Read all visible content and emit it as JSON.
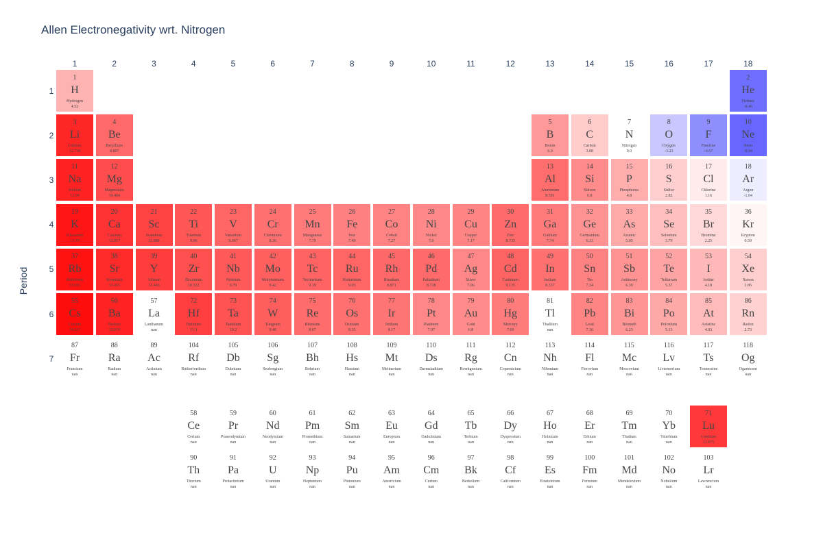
{
  "chart_data": {
    "type": "heatmap",
    "title": "Allen Electronegativity wrt. Nitrogen",
    "ylabel": "Period",
    "xlabel": "",
    "group_ticks": [
      "1",
      "2",
      "3",
      "4",
      "5",
      "6",
      "7",
      "8",
      "9",
      "10",
      "11",
      "12",
      "13",
      "14",
      "15",
      "16",
      "17",
      "18"
    ],
    "period_ticks": [
      "1",
      "2",
      "3",
      "4",
      "5",
      "6",
      "7"
    ],
    "colorscale": {
      "negative": "#0000ff",
      "zero": "#ffffff",
      "positive": "#ff0000",
      "range": [
        -15,
        15
      ]
    },
    "elements": [
      {
        "z": 1,
        "sym": "H",
        "name": "Hydrogen",
        "val": "4.52",
        "group": 1,
        "period": 1
      },
      {
        "z": 2,
        "sym": "He",
        "name": "Helium",
        "val": "-8.46",
        "group": 18,
        "period": 1
      },
      {
        "z": 3,
        "sym": "Li",
        "name": "Lithium",
        "val": "12.738",
        "group": 1,
        "period": 2
      },
      {
        "z": 4,
        "sym": "Be",
        "name": "Beryllium",
        "val": "8.807",
        "group": 2,
        "period": 2
      },
      {
        "z": 5,
        "sym": "B",
        "name": "Boron",
        "val": "6.0",
        "group": 13,
        "period": 2
      },
      {
        "z": 6,
        "sym": "C",
        "name": "Carbon",
        "val": "3.08",
        "group": 14,
        "period": 2
      },
      {
        "z": 7,
        "sym": "N",
        "name": "Nitrogen",
        "val": "0.0",
        "group": 15,
        "period": 2
      },
      {
        "z": 8,
        "sym": "O",
        "name": "Oxygen",
        "val": "-3.23",
        "group": 16,
        "period": 2
      },
      {
        "z": 9,
        "sym": "F",
        "name": "Fluorine",
        "val": "-6.67",
        "group": 17,
        "period": 2
      },
      {
        "z": 10,
        "sym": "Ne",
        "name": "Neon",
        "val": "-8.94",
        "group": 18,
        "period": 2
      },
      {
        "z": 11,
        "sym": "Na",
        "name": "Sodium",
        "val": "12.99",
        "group": 1,
        "period": 3
      },
      {
        "z": 12,
        "sym": "Mg",
        "name": "Magnesium",
        "val": "10.484",
        "group": 2,
        "period": 3
      },
      {
        "z": 13,
        "sym": "Al",
        "name": "Aluminum",
        "val": "8.591",
        "group": 13,
        "period": 3
      },
      {
        "z": 14,
        "sym": "Si",
        "name": "Silicon",
        "val": "6.8",
        "group": 14,
        "period": 3
      },
      {
        "z": 15,
        "sym": "P",
        "name": "Phosphorus",
        "val": "4.8",
        "group": 15,
        "period": 3
      },
      {
        "z": 16,
        "sym": "S",
        "name": "Sulfur",
        "val": "2.82",
        "group": 16,
        "period": 3
      },
      {
        "z": 17,
        "sym": "Cl",
        "name": "Chlorine",
        "val": "1.16",
        "group": 17,
        "period": 3
      },
      {
        "z": 18,
        "sym": "Ar",
        "name": "Argon",
        "val": "-1.04",
        "group": 18,
        "period": 3
      },
      {
        "z": 19,
        "sym": "K",
        "name": "Potassium",
        "val": "13.79",
        "group": 1,
        "period": 4
      },
      {
        "z": 20,
        "sym": "Ca",
        "name": "Calcium",
        "val": "12.017",
        "group": 2,
        "period": 4
      },
      {
        "z": 21,
        "sym": "Sc",
        "name": "Scandium",
        "val": "11.088",
        "group": 3,
        "period": 4
      },
      {
        "z": 22,
        "sym": "Ti",
        "name": "Titanium",
        "val": "9.96",
        "group": 4,
        "period": 4
      },
      {
        "z": 23,
        "sym": "V",
        "name": "Vanadium",
        "val": "9.067",
        "group": 5,
        "period": 4
      },
      {
        "z": 24,
        "sym": "Cr",
        "name": "Chromium",
        "val": "8.36",
        "group": 6,
        "period": 4
      },
      {
        "z": 25,
        "sym": "Mn",
        "name": "Manganese",
        "val": "7.79",
        "group": 7,
        "period": 4
      },
      {
        "z": 26,
        "sym": "Fe",
        "name": "Iron",
        "val": "7.49",
        "group": 8,
        "period": 4
      },
      {
        "z": 27,
        "sym": "Co",
        "name": "Cobalt",
        "val": "7.27",
        "group": 9,
        "period": 4
      },
      {
        "z": 28,
        "sym": "Ni",
        "name": "Nickel",
        "val": "7.0",
        "group": 10,
        "period": 4
      },
      {
        "z": 29,
        "sym": "Cu",
        "name": "Copper",
        "val": "7.17",
        "group": 11,
        "period": 4
      },
      {
        "z": 30,
        "sym": "Zn",
        "name": "Zinc",
        "val": "8.735",
        "group": 12,
        "period": 4
      },
      {
        "z": 31,
        "sym": "Ga",
        "name": "Gallium",
        "val": "7.74",
        "group": 13,
        "period": 4
      },
      {
        "z": 32,
        "sym": "Ge",
        "name": "Germanium",
        "val": "6.33",
        "group": 14,
        "period": 4
      },
      {
        "z": 33,
        "sym": "As",
        "name": "Arsenic",
        "val": "5.05",
        "group": 15,
        "period": 4
      },
      {
        "z": 34,
        "sym": "Se",
        "name": "Selenium",
        "val": "3.79",
        "group": 16,
        "period": 4
      },
      {
        "z": 35,
        "sym": "Br",
        "name": "Bromine",
        "val": "2.25",
        "group": 17,
        "period": 4
      },
      {
        "z": 36,
        "sym": "Kr",
        "name": "Krypton",
        "val": "0.59",
        "group": 18,
        "period": 4
      },
      {
        "z": 37,
        "sym": "Rb",
        "name": "Rubidium",
        "val": "13.955",
        "group": 1,
        "period": 5
      },
      {
        "z": 38,
        "sym": "Sr",
        "name": "Strontium",
        "val": "12.455",
        "group": 2,
        "period": 5
      },
      {
        "z": 39,
        "sym": "Y",
        "name": "Yttrium",
        "val": "11.406",
        "group": 3,
        "period": 5
      },
      {
        "z": 40,
        "sym": "Zr",
        "name": "Zirconium",
        "val": "10.322",
        "group": 4,
        "period": 5
      },
      {
        "z": 41,
        "sym": "Nb",
        "name": "Niobium",
        "val": "9.79",
        "group": 5,
        "period": 5
      },
      {
        "z": 42,
        "sym": "Mo",
        "name": "Molybdenum",
        "val": "9.42",
        "group": 6,
        "period": 5
      },
      {
        "z": 43,
        "sym": "Tc",
        "name": "Technetium",
        "val": "9.19",
        "group": 7,
        "period": 5
      },
      {
        "z": 44,
        "sym": "Ru",
        "name": "Ruthenium",
        "val": "9.03",
        "group": 8,
        "period": 5
      },
      {
        "z": 45,
        "sym": "Rh",
        "name": "Rhodium",
        "val": "8.871",
        "group": 9,
        "period": 5
      },
      {
        "z": 46,
        "sym": "Pd",
        "name": "Palladium",
        "val": "8.728",
        "group": 10,
        "period": 5
      },
      {
        "z": 47,
        "sym": "Ag",
        "name": "Silver",
        "val": "7.06",
        "group": 11,
        "period": 5
      },
      {
        "z": 48,
        "sym": "Cd",
        "name": "Cadmium",
        "val": "9.135",
        "group": 12,
        "period": 5
      },
      {
        "z": 49,
        "sym": "In",
        "name": "Indium",
        "val": "8.337",
        "group": 13,
        "period": 5
      },
      {
        "z": 50,
        "sym": "Sn",
        "name": "Tin",
        "val": "7.34",
        "group": 14,
        "period": 5
      },
      {
        "z": 51,
        "sym": "Sb",
        "name": "Antimony",
        "val": "6.39",
        "group": 15,
        "period": 5
      },
      {
        "z": 52,
        "sym": "Te",
        "name": "Tellurium",
        "val": "5.37",
        "group": 16,
        "period": 5
      },
      {
        "z": 53,
        "sym": "I",
        "name": "Iodine",
        "val": "4.18",
        "group": 17,
        "period": 5
      },
      {
        "z": 54,
        "sym": "Xe",
        "name": "Xenon",
        "val": "2.86",
        "group": 18,
        "period": 5
      },
      {
        "z": 55,
        "sym": "Cs",
        "name": "Cesium",
        "val": "14.232",
        "group": 1,
        "period": 6
      },
      {
        "z": 56,
        "sym": "Ba",
        "name": "Barium",
        "val": "12.919",
        "group": 2,
        "period": 6
      },
      {
        "z": 57,
        "sym": "La",
        "name": "Lanthanum",
        "val": "nan",
        "group": 3,
        "period": 6
      },
      {
        "z": 72,
        "sym": "Hf",
        "name": "Hafnium",
        "val": "11.3",
        "group": 4,
        "period": 6
      },
      {
        "z": 73,
        "sym": "Ta",
        "name": "Tantalum",
        "val": "10.2",
        "group": 5,
        "period": 6
      },
      {
        "z": 74,
        "sym": "W",
        "name": "Tungsten",
        "val": "9.46",
        "group": 6,
        "period": 6
      },
      {
        "z": 75,
        "sym": "Re",
        "name": "Rhenium",
        "val": "8.67",
        "group": 7,
        "period": 6
      },
      {
        "z": 76,
        "sym": "Os",
        "name": "Osmium",
        "val": "8.35",
        "group": 8,
        "period": 6
      },
      {
        "z": 77,
        "sym": "Ir",
        "name": "Iridium",
        "val": "8.17",
        "group": 9,
        "period": 6
      },
      {
        "z": 78,
        "sym": "Pt",
        "name": "Platinum",
        "val": "7.07",
        "group": 10,
        "period": 6
      },
      {
        "z": 79,
        "sym": "Au",
        "name": "Gold",
        "val": "6.8",
        "group": 11,
        "period": 6
      },
      {
        "z": 80,
        "sym": "Hg",
        "name": "Mercury",
        "val": "7.69",
        "group": 12,
        "period": 6
      },
      {
        "z": 81,
        "sym": "Tl",
        "name": "Thallium",
        "val": "nan",
        "group": 13,
        "period": 6
      },
      {
        "z": 82,
        "sym": "Pb",
        "name": "Lead",
        "val": "7.16",
        "group": 14,
        "period": 6
      },
      {
        "z": 83,
        "sym": "Bi",
        "name": "Bismuth",
        "val": "6.23",
        "group": 15,
        "period": 6
      },
      {
        "z": 84,
        "sym": "Po",
        "name": "Polonium",
        "val": "5.13",
        "group": 16,
        "period": 6
      },
      {
        "z": 85,
        "sym": "At",
        "name": "Astatine",
        "val": "4.03",
        "group": 17,
        "period": 6
      },
      {
        "z": 86,
        "sym": "Rn",
        "name": "Radon",
        "val": "2.73",
        "group": 18,
        "period": 6
      },
      {
        "z": 87,
        "sym": "Fr",
        "name": "Francium",
        "val": "nan",
        "group": 1,
        "period": 7
      },
      {
        "z": 88,
        "sym": "Ra",
        "name": "Radium",
        "val": "nan",
        "group": 2,
        "period": 7
      },
      {
        "z": 89,
        "sym": "Ac",
        "name": "Actinium",
        "val": "nan",
        "group": 3,
        "period": 7
      },
      {
        "z": 104,
        "sym": "Rf",
        "name": "Rutherfordium",
        "val": "nan",
        "group": 4,
        "period": 7
      },
      {
        "z": 105,
        "sym": "Db",
        "name": "Dubnium",
        "val": "nan",
        "group": 5,
        "period": 7
      },
      {
        "z": 106,
        "sym": "Sg",
        "name": "Seaborgium",
        "val": "nan",
        "group": 6,
        "period": 7
      },
      {
        "z": 107,
        "sym": "Bh",
        "name": "Bohrium",
        "val": "nan",
        "group": 7,
        "period": 7
      },
      {
        "z": 108,
        "sym": "Hs",
        "name": "Hassium",
        "val": "nan",
        "group": 8,
        "period": 7
      },
      {
        "z": 109,
        "sym": "Mt",
        "name": "Meitnerium",
        "val": "nan",
        "group": 9,
        "period": 7
      },
      {
        "z": 110,
        "sym": "Ds",
        "name": "Darmstadtium",
        "val": "nan",
        "group": 10,
        "period": 7
      },
      {
        "z": 111,
        "sym": "Rg",
        "name": "Roentgenium",
        "val": "nan",
        "group": 11,
        "period": 7
      },
      {
        "z": 112,
        "sym": "Cn",
        "name": "Copernicium",
        "val": "nan",
        "group": 12,
        "period": 7
      },
      {
        "z": 113,
        "sym": "Nh",
        "name": "Nihonium",
        "val": "nan",
        "group": 13,
        "period": 7
      },
      {
        "z": 114,
        "sym": "Fl",
        "name": "Flerovium",
        "val": "nan",
        "group": 14,
        "period": 7
      },
      {
        "z": 115,
        "sym": "Mc",
        "name": "Moscovium",
        "val": "nan",
        "group": 15,
        "period": 7
      },
      {
        "z": 116,
        "sym": "Lv",
        "name": "Livermorium",
        "val": "nan",
        "group": 16,
        "period": 7
      },
      {
        "z": 117,
        "sym": "Ts",
        "name": "Tennessine",
        "val": "nan",
        "group": 17,
        "period": 7
      },
      {
        "z": 118,
        "sym": "Og",
        "name": "Oganesson",
        "val": "nan",
        "group": 18,
        "period": 7
      },
      {
        "z": 58,
        "sym": "Ce",
        "name": "Cerium",
        "val": "nan",
        "group": 4,
        "period": 9
      },
      {
        "z": 59,
        "sym": "Pr",
        "name": "Praseodymium",
        "val": "nan",
        "group": 5,
        "period": 9
      },
      {
        "z": 60,
        "sym": "Nd",
        "name": "Neodymium",
        "val": "nan",
        "group": 6,
        "period": 9
      },
      {
        "z": 61,
        "sym": "Pm",
        "name": "Promethium",
        "val": "nan",
        "group": 7,
        "period": 9
      },
      {
        "z": 62,
        "sym": "Sm",
        "name": "Samarium",
        "val": "nan",
        "group": 8,
        "period": 9
      },
      {
        "z": 63,
        "sym": "Eu",
        "name": "Europium",
        "val": "nan",
        "group": 9,
        "period": 9
      },
      {
        "z": 64,
        "sym": "Gd",
        "name": "Gadolinium",
        "val": "nan",
        "group": 10,
        "period": 9
      },
      {
        "z": 65,
        "sym": "Tb",
        "name": "Terbium",
        "val": "nan",
        "group": 11,
        "period": 9
      },
      {
        "z": 66,
        "sym": "Dy",
        "name": "Dysprosium",
        "val": "nan",
        "group": 12,
        "period": 9
      },
      {
        "z": 67,
        "sym": "Ho",
        "name": "Holmium",
        "val": "nan",
        "group": 13,
        "period": 9
      },
      {
        "z": 68,
        "sym": "Er",
        "name": "Erbium",
        "val": "nan",
        "group": 14,
        "period": 9
      },
      {
        "z": 69,
        "sym": "Tm",
        "name": "Thulium",
        "val": "nan",
        "group": 15,
        "period": 9
      },
      {
        "z": 70,
        "sym": "Yb",
        "name": "Ytterbium",
        "val": "nan",
        "group": 16,
        "period": 9
      },
      {
        "z": 71,
        "sym": "Lu",
        "name": "Lutetium",
        "val": "11.675",
        "group": 17,
        "period": 9
      },
      {
        "z": 90,
        "sym": "Th",
        "name": "Thorium",
        "val": "nan",
        "group": 4,
        "period": 10
      },
      {
        "z": 91,
        "sym": "Pa",
        "name": "Protactinium",
        "val": "nan",
        "group": 5,
        "period": 10
      },
      {
        "z": 92,
        "sym": "U",
        "name": "Uranium",
        "val": "nan",
        "group": 6,
        "period": 10
      },
      {
        "z": 93,
        "sym": "Np",
        "name": "Neptunium",
        "val": "nan",
        "group": 7,
        "period": 10
      },
      {
        "z": 94,
        "sym": "Pu",
        "name": "Plutonium",
        "val": "nan",
        "group": 8,
        "period": 10
      },
      {
        "z": 95,
        "sym": "Am",
        "name": "Americium",
        "val": "nan",
        "group": 9,
        "period": 10
      },
      {
        "z": 96,
        "sym": "Cm",
        "name": "Curium",
        "val": "nan",
        "group": 10,
        "period": 10
      },
      {
        "z": 97,
        "sym": "Bk",
        "name": "Berkelium",
        "val": "nan",
        "group": 11,
        "period": 10
      },
      {
        "z": 98,
        "sym": "Cf",
        "name": "Californium",
        "val": "nan",
        "group": 12,
        "period": 10
      },
      {
        "z": 99,
        "sym": "Es",
        "name": "Einsteinium",
        "val": "nan",
        "group": 13,
        "period": 10
      },
      {
        "z": 100,
        "sym": "Fm",
        "name": "Fermium",
        "val": "nan",
        "group": 14,
        "period": 10
      },
      {
        "z": 101,
        "sym": "Md",
        "name": "Mendelevium",
        "val": "nan",
        "group": 15,
        "period": 10
      },
      {
        "z": 102,
        "sym": "No",
        "name": "Nobelium",
        "val": "nan",
        "group": 16,
        "period": 10
      },
      {
        "z": 103,
        "sym": "Lr",
        "name": "Lawrencium",
        "val": "nan",
        "group": 17,
        "period": 10
      }
    ]
  }
}
